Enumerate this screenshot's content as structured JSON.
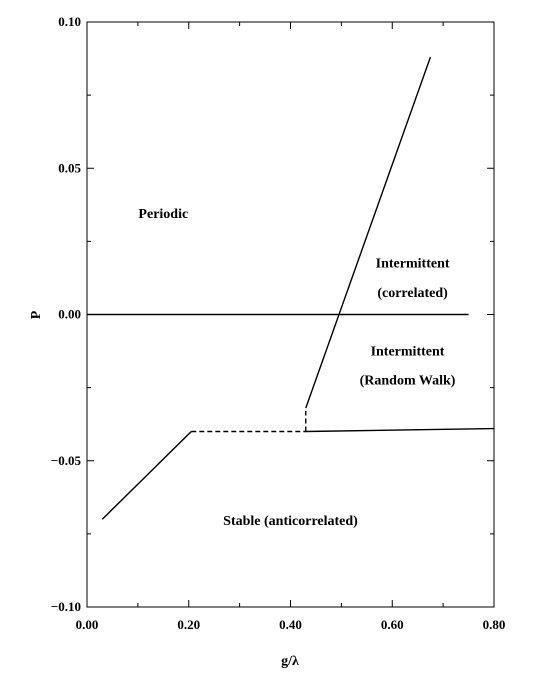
{
  "chart_data": {
    "type": "line",
    "title": "",
    "xlabel": "g/λ",
    "ylabel": "P",
    "xlim": [
      0.0,
      0.8
    ],
    "ylim": [
      -0.1,
      0.1
    ],
    "x_ticks": [
      0.0,
      0.2,
      0.4,
      0.6,
      0.8
    ],
    "x_tick_labels": [
      "0.00",
      "0.20",
      "0.40",
      "0.60",
      "0.80"
    ],
    "y_ticks": [
      -0.1,
      -0.05,
      0.0,
      0.05,
      0.1
    ],
    "y_tick_labels": [
      "−0.10",
      "−0.05",
      "0.00",
      "0.05",
      "0.10"
    ],
    "grid": false,
    "series": [
      {
        "values": [
          [
            0.03,
            -0.07
          ],
          [
            0.205,
            -0.04
          ]
        ],
        "style": "solid"
      },
      {
        "values": [
          [
            0.205,
            -0.04
          ],
          [
            0.43,
            -0.04
          ]
        ],
        "style": "dashed"
      },
      {
        "values": [
          [
            0.43,
            -0.04
          ],
          [
            0.8,
            -0.039
          ]
        ],
        "style": "solid"
      },
      {
        "values": [
          [
            0.43,
            -0.04
          ],
          [
            0.43,
            -0.033
          ]
        ],
        "style": "dashed"
      },
      {
        "values": [
          [
            0.43,
            -0.032
          ],
          [
            0.675,
            0.088
          ]
        ],
        "style": "solid"
      },
      {
        "values": [
          [
            0.0,
            0.0
          ],
          [
            0.75,
            0.0
          ]
        ],
        "style": "solid"
      }
    ],
    "annotations": [
      {
        "text": "Periodic",
        "x": 0.15,
        "y": 0.033
      },
      {
        "text": "Intermittent",
        "x": 0.64,
        "y": 0.016
      },
      {
        "text": "(correlated)",
        "x": 0.64,
        "y": 0.006
      },
      {
        "text": "Intermittent",
        "x": 0.63,
        "y": -0.014
      },
      {
        "text": "(Random Walk)",
        "x": 0.63,
        "y": -0.024
      },
      {
        "text": "Stable (anticorrelated)",
        "x": 0.4,
        "y": -0.072
      }
    ]
  }
}
